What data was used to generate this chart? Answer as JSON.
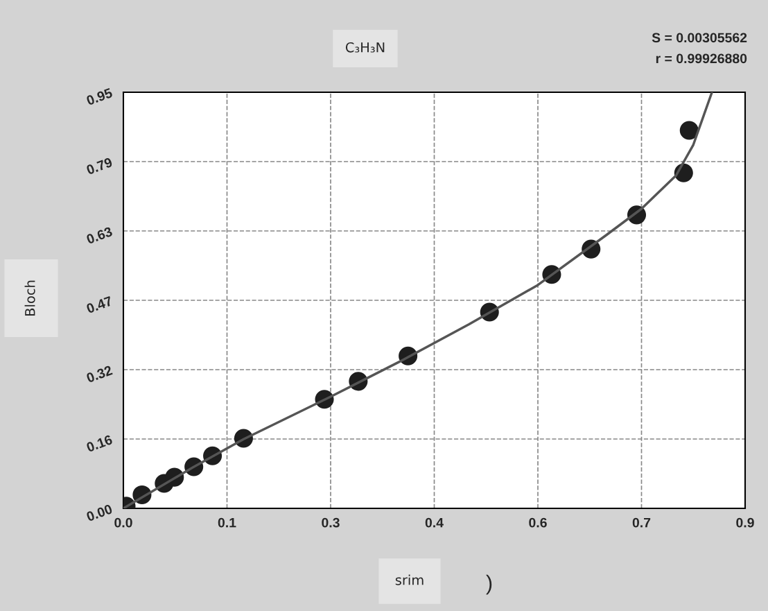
{
  "chart_data": {
    "type": "scatter",
    "title": "C₃H₃N",
    "xlabel": "srim",
    "ylabel": "Bloch",
    "annotations": [
      "S = 0.00305562",
      "r = 0.99926880",
      ")"
    ],
    "series": [
      {
        "color": "#1e1e1e",
        "marker": "circle",
        "x": [
          0.004,
          0.027,
          0.059,
          0.074,
          0.102,
          0.129,
          0.174,
          0.291,
          0.34,
          0.412,
          0.53,
          0.62,
          0.677,
          0.743,
          0.811,
          0.819
        ],
        "values": [
          0.005,
          0.031,
          0.057,
          0.071,
          0.095,
          0.12,
          0.16,
          0.249,
          0.29,
          0.348,
          0.448,
          0.534,
          0.592,
          0.67,
          0.766,
          0.863
        ]
      },
      {
        "type": "line",
        "marker": "none",
        "color": "#555555",
        "x": [
          0.0,
          0.1,
          0.174,
          0.3,
          0.4,
          0.5,
          0.6,
          0.7,
          0.75,
          0.8,
          0.825,
          0.852
        ],
        "values": [
          0.0,
          0.093,
          0.158,
          0.255,
          0.335,
          0.42,
          0.51,
          0.625,
          0.684,
          0.76,
          0.83,
          0.95
        ]
      }
    ],
    "xlim": [
      0,
      0.9
    ],
    "ylim": [
      0,
      0.95
    ],
    "xticks": [
      {
        "value": 0,
        "label": "0.0"
      },
      {
        "value": 0.15,
        "label": "0.1"
      },
      {
        "value": 0.3,
        "label": "0.3"
      },
      {
        "value": 0.45,
        "label": "0.4"
      },
      {
        "value": 0.6,
        "label": "0.6"
      },
      {
        "value": 0.75,
        "label": "0.7"
      },
      {
        "value": 0.9,
        "label": "0.9"
      }
    ],
    "yticks": [
      {
        "value": 0,
        "label": "0.00"
      },
      {
        "value": 0.1583,
        "label": "0.16"
      },
      {
        "value": 0.3167,
        "label": "0.32"
      },
      {
        "value": 0.475,
        "label": "0.47"
      },
      {
        "value": 0.6333,
        "label": "0.63"
      },
      {
        "value": 0.7917,
        "label": "0.79"
      },
      {
        "value": 0.95,
        "label": "0.95"
      }
    ],
    "grid": true,
    "line_style": "solid"
  }
}
